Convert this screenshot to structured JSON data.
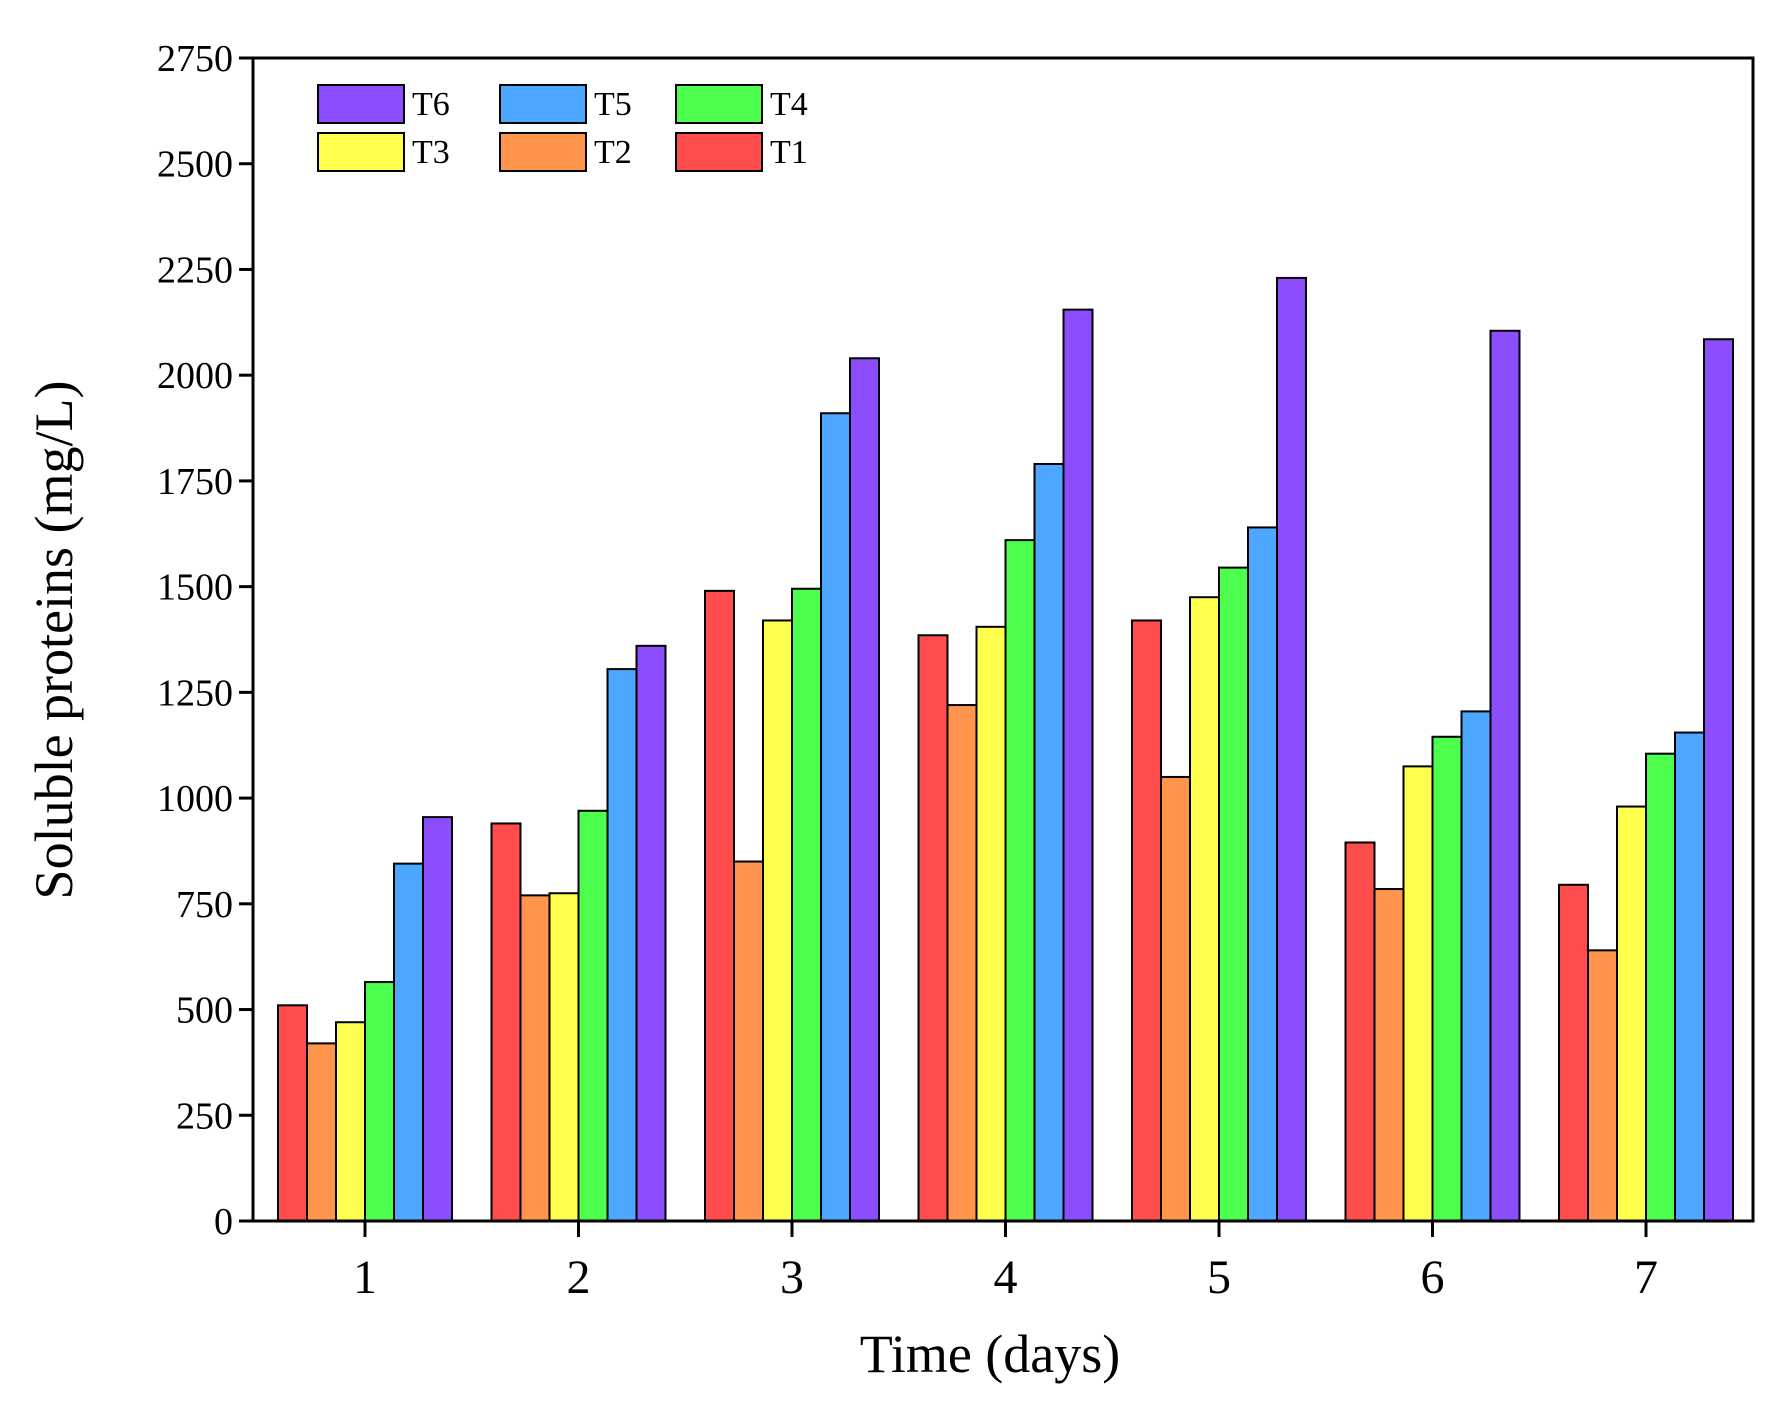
{
  "chart_data": {
    "type": "bar",
    "title": "",
    "xlabel": "Time (days)",
    "ylabel": "Soluble proteins (mg/L)",
    "ylim": [
      0,
      2750
    ],
    "yticks": [
      0,
      250,
      500,
      750,
      1000,
      1250,
      1500,
      1750,
      2000,
      2250,
      2500,
      2750
    ],
    "categories": [
      "1",
      "2",
      "3",
      "4",
      "5",
      "6",
      "7"
    ],
    "grid": false,
    "legend_position": "top-left",
    "series": [
      {
        "name": "T1",
        "color": "#ff4d4d",
        "values": [
          510,
          940,
          1490,
          1385,
          1420,
          895,
          795
        ]
      },
      {
        "name": "T2",
        "color": "#ff944d",
        "values": [
          420,
          770,
          850,
          1220,
          1050,
          785,
          640
        ]
      },
      {
        "name": "T3",
        "color": "#ffff4d",
        "values": [
          470,
          775,
          1420,
          1405,
          1475,
          1075,
          980
        ]
      },
      {
        "name": "T4",
        "color": "#4dff4d",
        "values": [
          565,
          970,
          1495,
          1610,
          1545,
          1145,
          1105
        ]
      },
      {
        "name": "T5",
        "color": "#4da6ff",
        "values": [
          845,
          1305,
          1910,
          1790,
          1640,
          1205,
          1155
        ]
      },
      {
        "name": "T6",
        "color": "#8c4dff",
        "values": [
          955,
          1360,
          2040,
          2155,
          2230,
          2105,
          2085
        ]
      }
    ],
    "legend_order": [
      "T6",
      "T5",
      "T4",
      "T3",
      "T2",
      "T1"
    ]
  }
}
